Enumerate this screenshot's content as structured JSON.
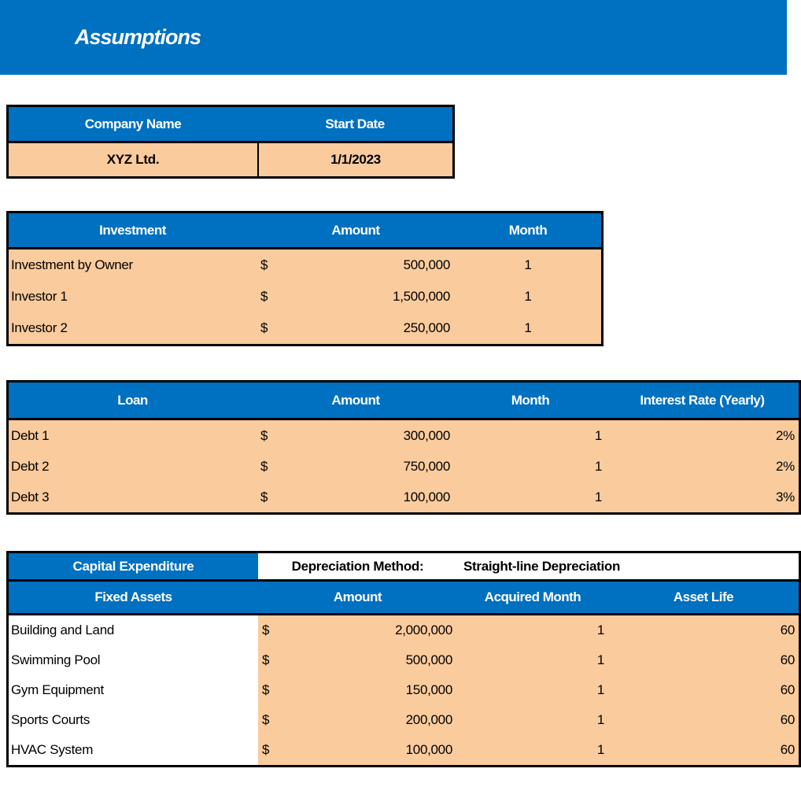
{
  "colors": {
    "header_blue": "#0070C0",
    "row_peach": "#FACB9D",
    "border_black": "#000000"
  },
  "page": {
    "title": "Assumptions"
  },
  "company_table": {
    "headers": {
      "name": "Company Name",
      "start_date": "Start Date"
    },
    "row": {
      "name": "XYZ Ltd.",
      "start_date": "1/1/2023"
    }
  },
  "investment_table": {
    "headers": {
      "label": "Investment",
      "amount": "Amount",
      "month": "Month"
    },
    "rows": [
      {
        "label": "Investment by Owner",
        "currency": "$",
        "amount": "500,000",
        "month": "1"
      },
      {
        "label": "Investor 1",
        "currency": "$",
        "amount": "1,500,000",
        "month": "1"
      },
      {
        "label": "Investor 2",
        "currency": "$",
        "amount": "250,000",
        "month": "1"
      }
    ]
  },
  "loan_table": {
    "headers": {
      "label": "Loan",
      "amount": "Amount",
      "month": "Month",
      "rate": "Interest Rate (Yearly)"
    },
    "rows": [
      {
        "label": "Debt 1",
        "currency": "$",
        "amount": "300,000",
        "month": "1",
        "rate": "2%"
      },
      {
        "label": "Debt 2",
        "currency": "$",
        "amount": "750,000",
        "month": "1",
        "rate": "2%"
      },
      {
        "label": "Debt 3",
        "currency": "$",
        "amount": "100,000",
        "month": "1",
        "rate": "3%"
      }
    ]
  },
  "capex_table": {
    "title": "Capital Expenditure",
    "depreciation_label": "Depreciation Method:",
    "depreciation_value": "Straight-line Depreciation",
    "headers": {
      "label": "Fixed Assets",
      "amount": "Amount",
      "month": "Acquired Month",
      "life": "Asset Life"
    },
    "rows": [
      {
        "label": "Building and Land",
        "currency": "$",
        "amount": "2,000,000",
        "month": "1",
        "life": "60"
      },
      {
        "label": "Swimming Pool",
        "currency": "$",
        "amount": "500,000",
        "month": "1",
        "life": "60"
      },
      {
        "label": "Gym Equipment",
        "currency": "$",
        "amount": "150,000",
        "month": "1",
        "life": "60"
      },
      {
        "label": "Sports Courts",
        "currency": "$",
        "amount": "200,000",
        "month": "1",
        "life": "60"
      },
      {
        "label": "HVAC System",
        "currency": "$",
        "amount": "100,000",
        "month": "1",
        "life": "60"
      }
    ]
  }
}
